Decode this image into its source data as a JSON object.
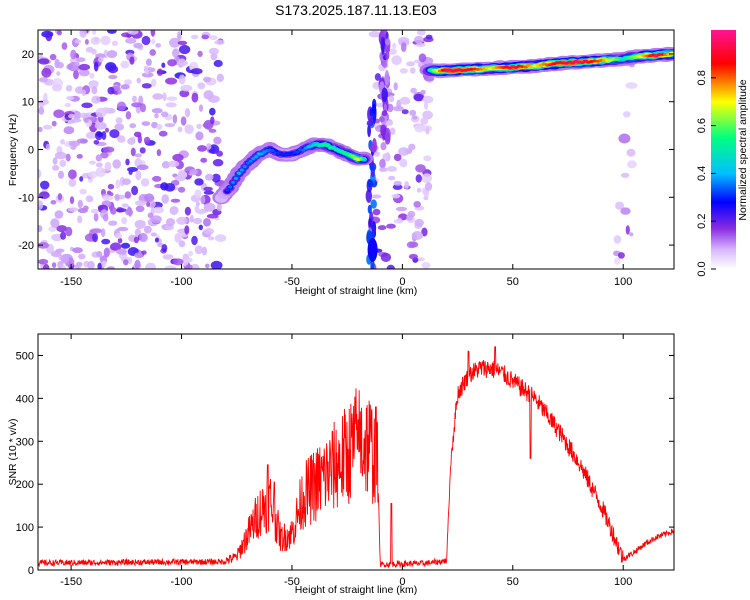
{
  "title": "S173.2025.187.11.13.E03",
  "chart_data": [
    {
      "type": "heatmap",
      "xlabel": "Height of straight line (km)",
      "ylabel": "Frequency (Hz)",
      "xlim": [
        -165,
        123
      ],
      "ylim": [
        -25,
        25
      ],
      "x_ticks": [
        -150,
        -100,
        -50,
        0,
        50,
        100
      ],
      "y_ticks": [
        -20,
        -10,
        0,
        10,
        20
      ],
      "colorbar": {
        "label": "Normalized spectral amplitude",
        "range": [
          0,
          1
        ],
        "ticks": [
          "0.0",
          "0.2",
          "0.4",
          "0.6",
          "0.8"
        ],
        "tick_values": [
          0,
          0.2,
          0.4,
          0.6,
          0.8
        ],
        "colormap": [
          "#ffffff",
          "#d8b8ff",
          "#8a2be2",
          "#0000ff",
          "#00c0ff",
          "#00ff80",
          "#ffff00",
          "#ff0000",
          "#ff1493"
        ]
      },
      "noise_regions": [
        {
          "x": [
            -165,
            -82
          ],
          "y": [
            -25,
            25
          ],
          "density": "high"
        },
        {
          "x": [
            -13,
            13
          ],
          "y": [
            -25,
            25
          ],
          "density": "medium"
        },
        {
          "x": [
            97,
            104
          ],
          "y": [
            -25,
            25
          ],
          "density": "low"
        }
      ],
      "ridge": [
        {
          "x": -82,
          "y": -10,
          "amp": 0.25
        },
        {
          "x": -78,
          "y": -8,
          "amp": 0.35
        },
        {
          "x": -74,
          "y": -5,
          "amp": 0.4
        },
        {
          "x": -70,
          "y": -3,
          "amp": 0.35
        },
        {
          "x": -65,
          "y": -1,
          "amp": 0.4
        },
        {
          "x": -60,
          "y": 0,
          "amp": 0.35
        },
        {
          "x": -55,
          "y": -1,
          "amp": 0.3
        },
        {
          "x": -50,
          "y": -1,
          "amp": 0.3
        },
        {
          "x": -45,
          "y": 0,
          "amp": 0.35
        },
        {
          "x": -40,
          "y": 1,
          "amp": 0.45
        },
        {
          "x": -35,
          "y": 1,
          "amp": 0.55
        },
        {
          "x": -30,
          "y": 0,
          "amp": 0.5
        },
        {
          "x": -25,
          "y": -1,
          "amp": 0.55
        },
        {
          "x": -20,
          "y": -2,
          "amp": 0.7
        },
        {
          "x": -16,
          "y": -2,
          "amp": 0.4
        },
        {
          "x": 13,
          "y": 16.5,
          "amp": 0.55
        },
        {
          "x": 20,
          "y": 16.5,
          "amp": 0.95
        },
        {
          "x": 30,
          "y": 16.7,
          "amp": 0.9
        },
        {
          "x": 40,
          "y": 17,
          "amp": 0.7
        },
        {
          "x": 50,
          "y": 17.2,
          "amp": 0.95
        },
        {
          "x": 60,
          "y": 17.5,
          "amp": 0.7
        },
        {
          "x": 70,
          "y": 18,
          "amp": 0.9
        },
        {
          "x": 80,
          "y": 18.3,
          "amp": 0.95
        },
        {
          "x": 90,
          "y": 18.6,
          "amp": 0.8
        },
        {
          "x": 100,
          "y": 19,
          "amp": 0.5
        },
        {
          "x": 108,
          "y": 19.5,
          "amp": 0.7
        },
        {
          "x": 115,
          "y": 19.7,
          "amp": 0.95
        },
        {
          "x": 122,
          "y": 20,
          "amp": 0.7
        }
      ],
      "vertical_streaks": [
        {
          "x": -14,
          "y": [
            -25,
            14
          ],
          "amp": 0.3
        },
        {
          "x": -8,
          "y": [
            2,
            25
          ],
          "amp": 0.2
        }
      ]
    },
    {
      "type": "line",
      "xlabel": "Height of straight line (km)",
      "ylabel": "SNR (10 * v/v)",
      "xlim": [
        -165,
        123
      ],
      "ylim": [
        0,
        550
      ],
      "x_ticks": [
        -150,
        -100,
        -50,
        0,
        50,
        100
      ],
      "y_ticks": [
        0,
        100,
        200,
        300,
        400,
        500
      ],
      "color": "#ff0000",
      "envelope": {
        "x": [
          -165,
          -80,
          -75,
          -65,
          -60,
          -55,
          -50,
          -45,
          -40,
          -35,
          -30,
          -25,
          -20,
          -15,
          -11,
          -10,
          -8,
          -5,
          0,
          10,
          20,
          22,
          25,
          30,
          35,
          40,
          45,
          50,
          60,
          70,
          80,
          90,
          95,
          100,
          105,
          110,
          115,
          123
        ],
        "y": [
          15,
          18,
          25,
          110,
          135,
          60,
          70,
          140,
          160,
          180,
          200,
          220,
          250,
          240,
          200,
          10,
          12,
          12,
          13,
          14,
          20,
          260,
          410,
          455,
          470,
          470,
          460,
          440,
          400,
          330,
          250,
          150,
          90,
          25,
          40,
          60,
          75,
          90
        ]
      },
      "spikes": [
        {
          "x": -61,
          "y": 245
        },
        {
          "x": -58,
          "y": 205
        },
        {
          "x": -20,
          "y": 350
        },
        {
          "x": -12,
          "y": 380
        },
        {
          "x": -5,
          "y": 155
        },
        {
          "x": 58,
          "y": 260
        },
        {
          "x": 42,
          "y": 520
        },
        {
          "x": 30,
          "y": 510
        }
      ]
    }
  ]
}
